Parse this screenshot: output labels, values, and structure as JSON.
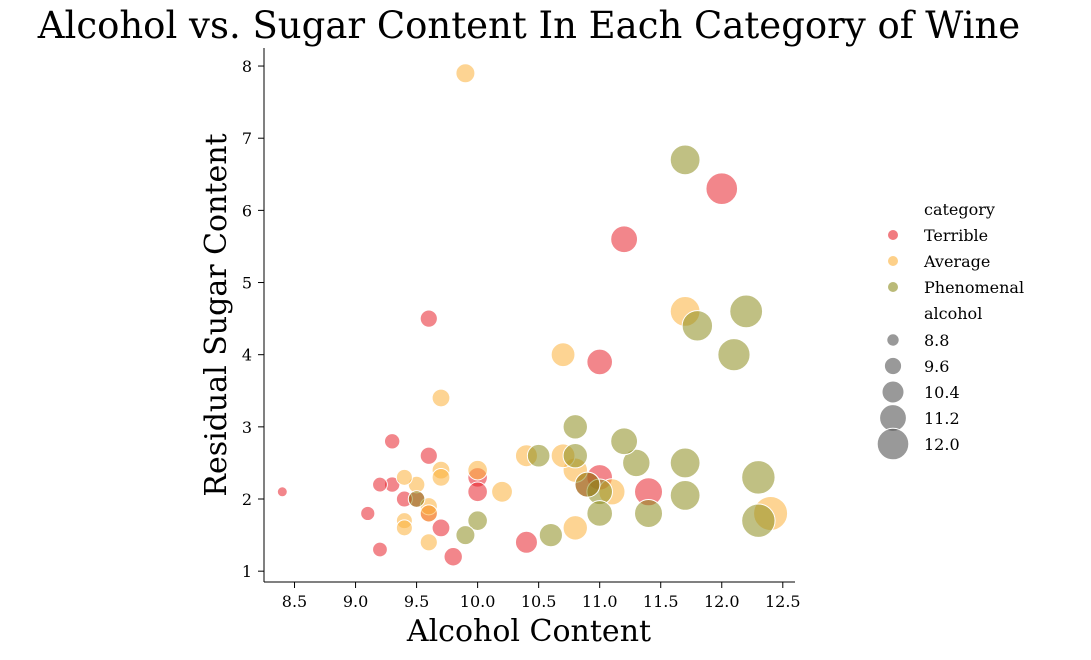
{
  "chart_data": {
    "type": "scatter",
    "title": "Alcohol vs. Sugar Content In Each Category of Wine",
    "xlabel": "Alcohol Content",
    "ylabel": "Residual Sugar Content",
    "xlim": [
      8.25,
      12.6
    ],
    "ylim": [
      0.85,
      8.25
    ],
    "xticks": [
      8.5,
      9.0,
      9.5,
      10.0,
      10.5,
      11.0,
      11.5,
      12.0,
      12.5
    ],
    "xtick_labels": [
      "8.5",
      "9.0",
      "9.5",
      "10.0",
      "10.5",
      "11.0",
      "11.5",
      "12.0",
      "12.5"
    ],
    "yticks": [
      1,
      2,
      3,
      4,
      5,
      6,
      7,
      8
    ],
    "ytick_labels": [
      "1",
      "2",
      "3",
      "4",
      "5",
      "6",
      "7",
      "8"
    ],
    "grid": false,
    "legend_placement": "right",
    "size_variable": "alcohol",
    "size_range": [
      8.4,
      12.4
    ],
    "hue_title": "category",
    "size_title": "alcohol",
    "series": [
      {
        "name": "Terrible",
        "color": "#e8232b",
        "points": [
          {
            "x": 8.4,
            "y": 2.1
          },
          {
            "x": 9.1,
            "y": 1.8
          },
          {
            "x": 9.2,
            "y": 2.2
          },
          {
            "x": 9.2,
            "y": 1.3
          },
          {
            "x": 9.3,
            "y": 2.8
          },
          {
            "x": 9.3,
            "y": 2.2
          },
          {
            "x": 9.4,
            "y": 2.0
          },
          {
            "x": 9.5,
            "y": 2.0
          },
          {
            "x": 9.6,
            "y": 4.5
          },
          {
            "x": 9.6,
            "y": 2.6
          },
          {
            "x": 9.6,
            "y": 1.8
          },
          {
            "x": 9.7,
            "y": 1.6
          },
          {
            "x": 9.8,
            "y": 1.2
          },
          {
            "x": 10.0,
            "y": 2.3
          },
          {
            "x": 10.0,
            "y": 2.1
          },
          {
            "x": 10.4,
            "y": 1.4
          },
          {
            "x": 11.0,
            "y": 3.9
          },
          {
            "x": 11.0,
            "y": 2.3
          },
          {
            "x": 10.9,
            "y": 2.2
          },
          {
            "x": 11.2,
            "y": 5.6
          },
          {
            "x": 11.4,
            "y": 2.1
          },
          {
            "x": 12.0,
            "y": 6.3
          }
        ]
      },
      {
        "name": "Average",
        "color": "#fbb03b",
        "points": [
          {
            "x": 9.4,
            "y": 2.3
          },
          {
            "x": 9.4,
            "y": 1.7
          },
          {
            "x": 9.4,
            "y": 1.6
          },
          {
            "x": 9.5,
            "y": 2.2
          },
          {
            "x": 9.6,
            "y": 1.9
          },
          {
            "x": 9.6,
            "y": 1.8
          },
          {
            "x": 9.6,
            "y": 1.4
          },
          {
            "x": 9.7,
            "y": 3.4
          },
          {
            "x": 9.7,
            "y": 2.4
          },
          {
            "x": 9.7,
            "y": 2.3
          },
          {
            "x": 9.9,
            "y": 7.9
          },
          {
            "x": 10.0,
            "y": 2.4
          },
          {
            "x": 10.2,
            "y": 2.1
          },
          {
            "x": 10.4,
            "y": 2.6
          },
          {
            "x": 10.7,
            "y": 4.0
          },
          {
            "x": 10.7,
            "y": 2.6
          },
          {
            "x": 10.8,
            "y": 2.4
          },
          {
            "x": 10.8,
            "y": 1.6
          },
          {
            "x": 11.1,
            "y": 2.1
          },
          {
            "x": 11.7,
            "y": 4.6
          },
          {
            "x": 12.4,
            "y": 1.8
          }
        ]
      },
      {
        "name": "Phenomenal",
        "color": "#8c8c1e",
        "points": [
          {
            "x": 9.5,
            "y": 2.0
          },
          {
            "x": 9.9,
            "y": 1.5
          },
          {
            "x": 10.0,
            "y": 1.7
          },
          {
            "x": 10.5,
            "y": 2.6
          },
          {
            "x": 10.6,
            "y": 1.5
          },
          {
            "x": 10.8,
            "y": 3.0
          },
          {
            "x": 10.8,
            "y": 2.6
          },
          {
            "x": 10.9,
            "y": 2.2
          },
          {
            "x": 11.0,
            "y": 2.1
          },
          {
            "x": 11.0,
            "y": 1.8
          },
          {
            "x": 11.2,
            "y": 2.8
          },
          {
            "x": 11.3,
            "y": 2.5
          },
          {
            "x": 11.4,
            "y": 1.8
          },
          {
            "x": 11.7,
            "y": 6.7
          },
          {
            "x": 11.7,
            "y": 2.5
          },
          {
            "x": 11.7,
            "y": 2.05
          },
          {
            "x": 11.8,
            "y": 4.4
          },
          {
            "x": 12.1,
            "y": 4.0
          },
          {
            "x": 12.2,
            "y": 4.6
          },
          {
            "x": 12.3,
            "y": 2.3
          },
          {
            "x": 12.3,
            "y": 1.7
          }
        ]
      }
    ],
    "size_legend": [
      {
        "label": "8.8",
        "value": 8.8
      },
      {
        "label": "9.6",
        "value": 9.6
      },
      {
        "label": "10.4",
        "value": 10.4
      },
      {
        "label": "11.2",
        "value": 11.2
      },
      {
        "label": "12.0",
        "value": 12.0
      }
    ]
  }
}
